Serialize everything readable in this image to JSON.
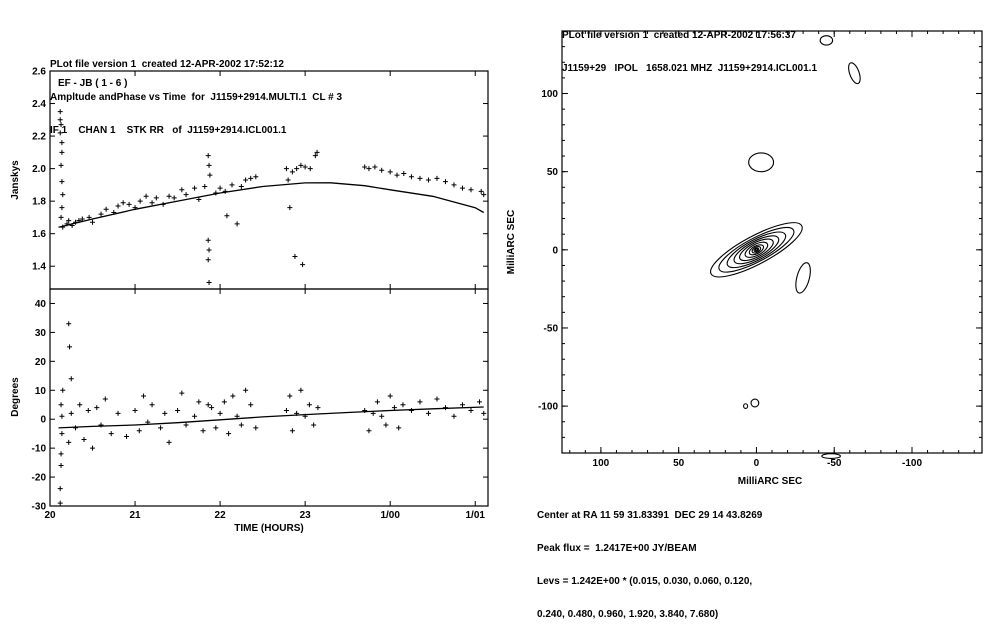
{
  "left_panel": {
    "header": [
      "PLot file version 1  created 12-APR-2002 17:52:12",
      "Ampltude andPhase vs Time  for  J1159+2914.MULTI.1  CL # 3",
      "IF 1    CHAN 1    STK RR   of  J1159+2914.ICL001.1"
    ],
    "baseline_label": "EF - JB ( 1 - 6 )",
    "x_axis_label": "TIME (HOURS)"
  },
  "right_panel": {
    "header": [
      "PLot file version 1  created 12-APR-2002 17:56:37",
      "J1159+29   IPOL   1658.021 MHZ  J1159+2914.ICL001.1"
    ],
    "x_axis_label": "MilliARC SEC",
    "y_axis_label": "MilliARC SEC",
    "footer": [
      "Center at RA 11 59 31.83391  DEC 29 14 43.8269",
      "Peak flux =  1.2417E+00 JY/BEAM",
      "Levs = 1.242E+00 * (0.015, 0.030, 0.060, 0.120,",
      "0.240, 0.480, 0.960, 1.920, 3.840, 7.680)"
    ]
  },
  "chart_data": [
    {
      "type": "scatter",
      "title": "Ampltude andPhase vs Time  for  J1159+2914.MULTI.1  CL # 3",
      "ylabel": "Janskys",
      "xlabel": "",
      "xlim": [
        20.0,
        25.15
      ],
      "ylim": [
        1.26,
        2.6
      ],
      "x_ticks": [
        20,
        21,
        22,
        23,
        24,
        25
      ],
      "x_tick_labels": [
        "20",
        "21",
        "22",
        "23",
        "1/00",
        "1/01"
      ],
      "y_ticks": [
        1.4,
        1.6,
        1.8,
        2.0,
        2.2,
        2.4,
        2.6
      ],
      "y_tick_labels": [
        "1.4",
        "1.6",
        "1.8",
        "2.0",
        "2.2",
        "2.4",
        "2.6"
      ],
      "marker": "+",
      "series": [
        {
          "points": [
            [
              20.12,
              2.35
            ],
            [
              20.12,
              2.3
            ],
            [
              20.13,
              2.27
            ],
            [
              20.12,
              2.22
            ],
            [
              20.14,
              2.16
            ],
            [
              20.14,
              2.1
            ],
            [
              20.13,
              2.02
            ],
            [
              20.14,
              1.92
            ],
            [
              20.15,
              1.84
            ],
            [
              20.14,
              1.76
            ],
            [
              20.13,
              1.7
            ],
            [
              20.15,
              1.64
            ],
            [
              20.2,
              1.66
            ],
            [
              20.22,
              1.68
            ],
            [
              20.26,
              1.65
            ],
            [
              20.3,
              1.67
            ],
            [
              20.34,
              1.68
            ],
            [
              20.38,
              1.69
            ],
            [
              20.46,
              1.7
            ],
            [
              20.5,
              1.67
            ],
            [
              20.6,
              1.72
            ],
            [
              20.66,
              1.75
            ],
            [
              20.75,
              1.73
            ],
            [
              20.8,
              1.77
            ],
            [
              20.86,
              1.79
            ],
            [
              20.93,
              1.78
            ],
            [
              21.0,
              1.76
            ],
            [
              21.06,
              1.8
            ],
            [
              21.13,
              1.83
            ],
            [
              21.2,
              1.79
            ],
            [
              21.25,
              1.82
            ],
            [
              21.33,
              1.78
            ],
            [
              21.4,
              1.83
            ],
            [
              21.46,
              1.82
            ],
            [
              21.55,
              1.87
            ],
            [
              21.6,
              1.84
            ],
            [
              21.7,
              1.88
            ],
            [
              21.75,
              1.81
            ],
            [
              21.82,
              1.89
            ],
            [
              21.86,
              2.08
            ],
            [
              21.87,
              2.02
            ],
            [
              21.88,
              1.96
            ],
            [
              21.86,
              1.56
            ],
            [
              21.87,
              1.5
            ],
            [
              21.86,
              1.44
            ],
            [
              21.87,
              1.3
            ],
            [
              21.95,
              1.85
            ],
            [
              22.0,
              1.88
            ],
            [
              22.06,
              1.86
            ],
            [
              22.08,
              1.71
            ],
            [
              22.14,
              1.9
            ],
            [
              22.2,
              1.66
            ],
            [
              22.25,
              1.89
            ],
            [
              22.3,
              1.93
            ],
            [
              22.36,
              1.94
            ],
            [
              22.42,
              1.95
            ],
            [
              22.78,
              2.0
            ],
            [
              22.8,
              1.93
            ],
            [
              22.82,
              1.76
            ],
            [
              22.85,
              1.98
            ],
            [
              22.88,
              1.46
            ],
            [
              22.9,
              2.0
            ],
            [
              22.95,
              2.02
            ],
            [
              22.97,
              1.41
            ],
            [
              23.0,
              2.01
            ],
            [
              23.06,
              2.0
            ],
            [
              23.12,
              2.08
            ],
            [
              23.14,
              2.1
            ],
            [
              23.7,
              2.01
            ],
            [
              23.75,
              2.0
            ],
            [
              23.82,
              2.01
            ],
            [
              23.9,
              1.99
            ],
            [
              24.0,
              1.98
            ],
            [
              24.08,
              1.96
            ],
            [
              24.16,
              1.97
            ],
            [
              24.25,
              1.95
            ],
            [
              24.35,
              1.94
            ],
            [
              24.45,
              1.93
            ],
            [
              24.55,
              1.94
            ],
            [
              24.65,
              1.92
            ],
            [
              24.75,
              1.9
            ],
            [
              24.85,
              1.88
            ],
            [
              24.95,
              1.87
            ],
            [
              25.07,
              1.86
            ],
            [
              25.1,
              1.84
            ]
          ]
        }
      ],
      "model_curve": {
        "x": [
          20.1,
          20.5,
          21.0,
          21.5,
          22.0,
          22.5,
          23.0,
          23.3,
          23.7,
          24.0,
          24.5,
          25.0,
          25.1
        ],
        "y": [
          1.64,
          1.69,
          1.75,
          1.8,
          1.85,
          1.89,
          1.912,
          1.913,
          1.895,
          1.87,
          1.83,
          1.76,
          1.73
        ]
      }
    },
    {
      "type": "scatter",
      "ylabel": "Degrees",
      "xlabel": "TIME (HOURS)",
      "xlim": [
        20.0,
        25.15
      ],
      "ylim": [
        -30,
        45
      ],
      "x_ticks": [
        20,
        21,
        22,
        23,
        24,
        25
      ],
      "x_tick_labels": [
        "20",
        "21",
        "22",
        "23",
        "1/00",
        "1/01"
      ],
      "y_ticks": [
        -30,
        -20,
        -10,
        0,
        10,
        20,
        30,
        40
      ],
      "y_tick_labels": [
        "-30",
        "-20",
        "-10",
        "0",
        "10",
        "20",
        "30",
        "40"
      ],
      "marker": "+",
      "series": [
        {
          "points": [
            [
              20.12,
              -29
            ],
            [
              20.12,
              -24
            ],
            [
              20.13,
              -16
            ],
            [
              20.13,
              -12
            ],
            [
              20.14,
              -5
            ],
            [
              20.14,
              1
            ],
            [
              20.13,
              5
            ],
            [
              20.15,
              10
            ],
            [
              20.22,
              33
            ],
            [
              20.23,
              25
            ],
            [
              20.25,
              14
            ],
            [
              20.22,
              -8
            ],
            [
              20.25,
              2
            ],
            [
              20.3,
              -3
            ],
            [
              20.35,
              5
            ],
            [
              20.4,
              -7
            ],
            [
              20.45,
              3
            ],
            [
              20.5,
              -10
            ],
            [
              20.55,
              4
            ],
            [
              20.6,
              -2
            ],
            [
              20.65,
              7
            ],
            [
              20.72,
              -5
            ],
            [
              20.8,
              2
            ],
            [
              20.9,
              -6
            ],
            [
              21.0,
              3
            ],
            [
              21.05,
              -4
            ],
            [
              21.1,
              8
            ],
            [
              21.15,
              -1
            ],
            [
              21.2,
              5
            ],
            [
              21.3,
              -3
            ],
            [
              21.35,
              2
            ],
            [
              21.4,
              -8
            ],
            [
              21.5,
              3
            ],
            [
              21.55,
              9
            ],
            [
              21.6,
              -2
            ],
            [
              21.7,
              1
            ],
            [
              21.75,
              6
            ],
            [
              21.8,
              -4
            ],
            [
              21.86,
              5
            ],
            [
              21.9,
              4
            ],
            [
              21.95,
              -3
            ],
            [
              22.0,
              2
            ],
            [
              22.05,
              6
            ],
            [
              22.1,
              -5
            ],
            [
              22.15,
              8
            ],
            [
              22.2,
              1
            ],
            [
              22.25,
              -2
            ],
            [
              22.3,
              10
            ],
            [
              22.36,
              5
            ],
            [
              22.42,
              -3
            ],
            [
              22.78,
              3
            ],
            [
              22.82,
              8
            ],
            [
              22.85,
              -4
            ],
            [
              22.9,
              2
            ],
            [
              22.95,
              10
            ],
            [
              23.0,
              1
            ],
            [
              23.05,
              5
            ],
            [
              23.1,
              -2
            ],
            [
              23.15,
              4
            ],
            [
              23.7,
              3
            ],
            [
              23.75,
              -4
            ],
            [
              23.8,
              2
            ],
            [
              23.85,
              6
            ],
            [
              23.9,
              1
            ],
            [
              23.95,
              -2
            ],
            [
              24.0,
              8
            ],
            [
              24.05,
              4
            ],
            [
              24.1,
              -3
            ],
            [
              24.15,
              5
            ],
            [
              24.25,
              3
            ],
            [
              24.35,
              6
            ],
            [
              24.45,
              2
            ],
            [
              24.55,
              7
            ],
            [
              24.65,
              4
            ],
            [
              24.75,
              1
            ],
            [
              24.85,
              5
            ],
            [
              24.95,
              3
            ],
            [
              25.05,
              6
            ],
            [
              25.1,
              2
            ]
          ]
        }
      ],
      "model_curve": {
        "x": [
          20.1,
          20.5,
          21.0,
          21.5,
          22.0,
          22.5,
          23.0,
          23.5,
          24.0,
          24.5,
          25.1
        ],
        "y": [
          -3,
          -2.5,
          -2,
          -1.2,
          -0.2,
          0.8,
          1.6,
          2.3,
          3.0,
          3.6,
          4.2
        ]
      }
    },
    {
      "type": "contour",
      "title": "J1159+29   IPOL   1658.021 MHZ  J1159+2914.ICL001.1",
      "xlabel": "MilliARC SEC",
      "ylabel": "MilliARC SEC",
      "xlim": [
        125,
        -145
      ],
      "ylim": [
        -130,
        140
      ],
      "x_ticks": [
        100,
        50,
        0,
        -50,
        -100
      ],
      "x_tick_labels": [
        "100",
        "50",
        "0",
        "-50",
        "-100"
      ],
      "y_ticks": [
        100,
        50,
        0,
        -50,
        -100
      ],
      "y_tick_labels": [
        "100",
        "50",
        "0",
        "-50",
        "-100"
      ],
      "peak_flux_jy_per_beam": 1.2417,
      "levels_multiplier": 1.242,
      "levels": [
        0.015,
        0.03,
        0.06,
        0.12,
        0.24,
        0.48,
        0.96,
        1.92,
        3.84,
        7.68
      ],
      "components": [
        {
          "center": [
            0,
            0
          ],
          "rx": [
            33,
            27,
            21,
            16,
            12,
            8,
            5,
            3,
            1.6,
            0.8
          ],
          "ry": [
            9,
            7.5,
            6.5,
            5.5,
            4.5,
            3.5,
            2.5,
            1.7,
            1.0,
            0.5
          ],
          "angle_deg": -28
        },
        {
          "center": [
            -30,
            -18
          ],
          "rx": [
            4
          ],
          "ry": [
            10
          ],
          "angle_deg": 15
        },
        {
          "center": [
            -3,
            56
          ],
          "rx": [
            8
          ],
          "ry": [
            6
          ],
          "angle_deg": 0
        },
        {
          "center": [
            -63,
            113
          ],
          "rx": [
            3
          ],
          "ry": [
            7
          ],
          "angle_deg": -20
        },
        {
          "center": [
            -45,
            134
          ],
          "rx": [
            4
          ],
          "ry": [
            3
          ],
          "angle_deg": 0
        },
        {
          "center": [
            -48,
            -132
          ],
          "rx": [
            6
          ],
          "ry": [
            1.5
          ],
          "angle_deg": 0
        },
        {
          "center": [
            1,
            -98
          ],
          "rx": [
            2.5
          ],
          "ry": [
            2.5
          ],
          "angle_deg": 0
        },
        {
          "center": [
            7,
            -100
          ],
          "rx": [
            1.3
          ],
          "ry": [
            1.5
          ],
          "angle_deg": 0
        }
      ]
    }
  ]
}
